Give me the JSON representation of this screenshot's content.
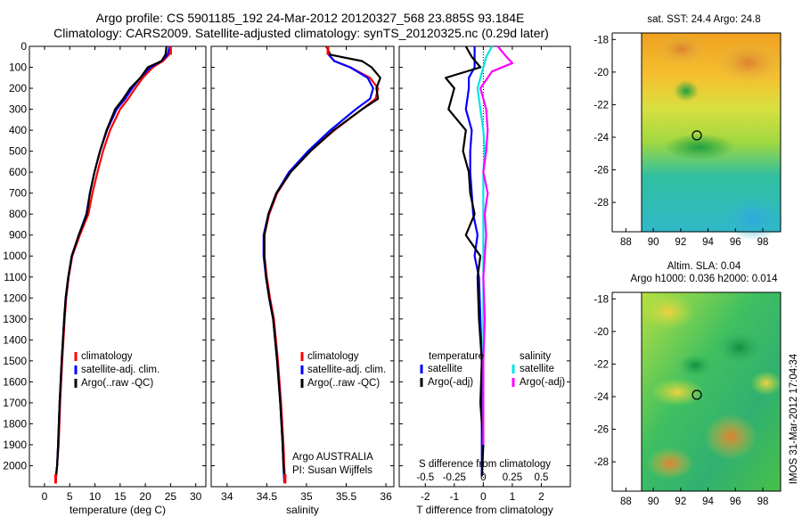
{
  "figure": {
    "title_line1": "Argo profile: CS 5901185_192 24-Mar-2012 20120327_568 23.885S 93.184E",
    "title_line2": "Climatology: CARS2009. Satellite-adjusted climatology: synTS_20120325.nc (0.29d later)",
    "side_stamp": "IMOS 31-Mar-2012 17:04:34",
    "argo_country": "Argo AUSTRALIA",
    "pi_label": "PI: Susan Wijffels"
  },
  "colors": {
    "climatology": "#ff0000",
    "satellite": "#0000ff",
    "argo": "#000000",
    "sat_salinity": "#00e5e5",
    "argo_salinity": "#ff00ff"
  },
  "legends": {
    "profile": [
      "climatology",
      "satellite-adj. clim.",
      "Argo(..raw -QC)"
    ],
    "diff_temperature_title": "temperature",
    "diff_salinity_title": "salinity",
    "diff_items": [
      "satellite",
      "Argo(-adj)"
    ]
  },
  "maps": {
    "sst_title": "sat. SST: 24.4  Argo: 24.8",
    "sla_title1": "Altim. SLA: 0.04",
    "sla_title2": "Argo h1000: 0.036 h2000: 0.014",
    "xticks": [
      "88",
      "90",
      "92",
      "94",
      "96",
      "98"
    ],
    "yticks": [
      "-18",
      "-20",
      "-22",
      "-24",
      "-26",
      "-28"
    ],
    "argo_lon": 93.184,
    "argo_lat": -23.885
  },
  "chart_data": [
    {
      "type": "line",
      "xlabel": "temperature (deg C)",
      "ylabel": "",
      "xlim": [
        -3,
        32
      ],
      "ylim": [
        2100,
        0
      ],
      "xticks": [
        0,
        5,
        10,
        15,
        20,
        25,
        30
      ],
      "yticks": [
        0,
        100,
        200,
        300,
        400,
        500,
        600,
        700,
        800,
        900,
        1000,
        1100,
        1200,
        1300,
        1400,
        1500,
        1600,
        1700,
        1800,
        1900,
        2000
      ],
      "series": [
        {
          "name": "climatology",
          "color": "#ff0000",
          "x": [
            25,
            24.7,
            23.5,
            21.5,
            19.5,
            18.0,
            16.6,
            15.0,
            13.0,
            11.6,
            10.5,
            9.5,
            8.7,
            7.0,
            5.5,
            4.8,
            4.3,
            4.0,
            3.5,
            3.1,
            2.8,
            2.5,
            2.3,
            2.2
          ],
          "y": [
            0,
            40,
            70,
            100,
            150,
            200,
            250,
            300,
            400,
            500,
            600,
            700,
            800,
            900,
            1000,
            1100,
            1200,
            1300,
            1500,
            1700,
            1900,
            2000,
            2050,
            2080
          ]
        },
        {
          "name": "satellite-adj. clim.",
          "color": "#0000ff",
          "x": [
            24.8,
            24.4,
            23.2,
            21.0,
            19.0,
            17.4,
            16.0,
            14.3,
            12.4,
            11.0,
            9.9,
            9.0,
            8.3,
            6.8,
            5.4,
            4.7,
            4.2,
            3.9,
            3.4,
            3.0,
            2.7,
            2.5,
            2.3,
            2.2
          ],
          "y": [
            0,
            40,
            70,
            100,
            150,
            200,
            250,
            300,
            400,
            500,
            600,
            700,
            800,
            900,
            1000,
            1100,
            1200,
            1300,
            1500,
            1700,
            1900,
            2000,
            2050,
            2080
          ]
        },
        {
          "name": "Argo(..raw -QC)",
          "color": "#000000",
          "x": [
            24.2,
            24.0,
            23.2,
            20.5,
            19.0,
            17.0,
            15.6,
            14.0,
            12.3,
            11.0,
            9.9,
            9.0,
            8.4,
            6.8,
            5.4,
            4.7,
            4.2,
            3.9,
            3.4,
            3.0,
            2.7,
            2.5,
            2.3
          ],
          "y": [
            0,
            40,
            70,
            100,
            150,
            200,
            250,
            300,
            400,
            500,
            600,
            700,
            800,
            900,
            1000,
            1100,
            1200,
            1300,
            1500,
            1700,
            1900,
            2000,
            2040
          ]
        }
      ]
    },
    {
      "type": "line",
      "xlabel": "salinity",
      "ylabel": "",
      "xlim": [
        33.8,
        36.1
      ],
      "ylim": [
        2100,
        0
      ],
      "xticks": [
        34,
        34.5,
        35,
        35.5,
        36
      ],
      "series": [
        {
          "name": "climatology",
          "color": "#ff0000",
          "x": [
            35.27,
            35.28,
            35.35,
            35.55,
            35.8,
            35.9,
            35.87,
            35.7,
            35.35,
            35.05,
            34.8,
            34.63,
            34.53,
            34.47,
            34.47,
            34.5,
            34.54,
            34.59,
            34.64,
            34.68,
            34.71,
            34.72,
            34.73
          ],
          "y": [
            0,
            40,
            70,
            100,
            150,
            200,
            250,
            300,
            400,
            500,
            600,
            700,
            800,
            900,
            1000,
            1100,
            1200,
            1300,
            1500,
            1700,
            1900,
            2000,
            2080
          ]
        },
        {
          "name": "satellite-adj. clim.",
          "color": "#0000ff",
          "x": [
            35.27,
            35.28,
            35.35,
            35.55,
            35.77,
            35.84,
            35.8,
            35.62,
            35.3,
            35.02,
            34.78,
            34.62,
            34.52,
            34.46,
            34.46,
            34.49,
            34.53,
            34.58,
            34.63,
            34.67,
            34.7,
            34.71,
            34.72
          ],
          "y": [
            0,
            40,
            70,
            100,
            150,
            200,
            250,
            300,
            400,
            500,
            600,
            700,
            800,
            900,
            1000,
            1100,
            1200,
            1300,
            1500,
            1700,
            1900,
            2000,
            2080
          ]
        },
        {
          "name": "Argo(..raw -QC)",
          "color": "#000000",
          "x": [
            35.25,
            35.3,
            35.7,
            35.82,
            35.93,
            35.88,
            35.9,
            35.7,
            35.34,
            35.05,
            34.8,
            34.62,
            34.52,
            34.47,
            34.47,
            34.49,
            34.53,
            34.58,
            34.63,
            34.67,
            34.7,
            34.71,
            34.72
          ],
          "y": [
            0,
            40,
            70,
            100,
            150,
            200,
            250,
            300,
            400,
            500,
            600,
            700,
            800,
            900,
            1000,
            1100,
            1200,
            1300,
            1500,
            1700,
            1900,
            2000,
            2040
          ]
        }
      ]
    },
    {
      "type": "line",
      "xlabel": "T difference from climatology",
      "xlabel_top": "S difference from climatology",
      "ylabel": "",
      "xlim": [
        -2.9,
        3.0
      ],
      "ylim": [
        2100,
        0
      ],
      "xticks": [
        -2,
        -1,
        0,
        1,
        2
      ],
      "top_xticks": [
        "-0.5",
        "-0.25",
        "0",
        "0.25",
        "0.5"
      ],
      "series": [
        {
          "name": "temperature satellite",
          "color": "#0000ff",
          "x": [
            -0.3,
            -0.3,
            -0.3,
            -0.5,
            -0.5,
            -0.6,
            -0.4,
            -0.45,
            -0.45,
            -0.4,
            -0.35,
            -0.2,
            -0.3,
            -0.15,
            -0.1,
            -0.05,
            -0.05,
            -0.05,
            -0.05
          ],
          "y": [
            0,
            50,
            100,
            150,
            200,
            300,
            400,
            500,
            600,
            700,
            800,
            900,
            1000,
            1100,
            1300,
            1500,
            1700,
            1900,
            2050
          ]
        },
        {
          "name": "temperature Argo(-adj)",
          "color": "#000000",
          "x": [
            -0.6,
            -0.4,
            -0.1,
            -1.3,
            -1.0,
            -1.2,
            -0.6,
            -0.7,
            -0.5,
            -0.45,
            -0.3,
            -0.6,
            -0.1,
            -0.2,
            -0.15,
            -0.05,
            -0.1,
            0,
            -0.05
          ],
          "y": [
            0,
            50,
            100,
            150,
            200,
            300,
            400,
            500,
            600,
            700,
            800,
            900,
            1000,
            1100,
            1300,
            1500,
            1700,
            1900,
            2050
          ]
        },
        {
          "name": "salinity satellite",
          "color": "#00e5e5",
          "x": [
            0.3,
            0.1,
            0.0,
            -0.1,
            -0.2,
            -0.1,
            0.0,
            0.05,
            0.0,
            0.0,
            0.0,
            0.0,
            0.0,
            0.0,
            0.0,
            0.0,
            0.0
          ],
          "y": [
            0,
            50,
            100,
            150,
            200,
            300,
            400,
            500,
            600,
            700,
            800,
            900,
            1100,
            1300,
            1500,
            1700,
            1900
          ]
        },
        {
          "name": "salinity Argo(-adj)",
          "color": "#ff00ff",
          "x": [
            0.5,
            0.8,
            1.0,
            0.3,
            -0.1,
            0.1,
            0.15,
            0.1,
            0.0,
            0.15,
            0.05,
            0.1,
            0.0,
            0.05,
            0.0,
            0.0,
            0.0
          ],
          "y": [
            0,
            50,
            80,
            120,
            200,
            300,
            400,
            500,
            600,
            700,
            800,
            900,
            1100,
            1300,
            1500,
            1700,
            1900
          ]
        }
      ]
    }
  ]
}
